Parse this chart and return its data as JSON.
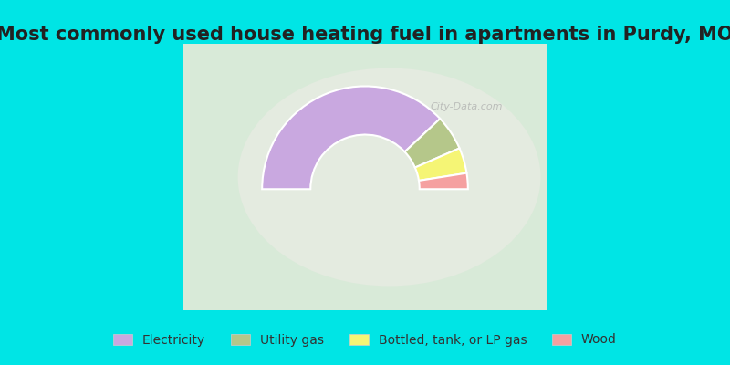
{
  "title": "Most commonly used house heating fuel in apartments in Purdy, MO",
  "segments": [
    {
      "label": "Electricity",
      "value": 76,
      "color": "#c9a8e0"
    },
    {
      "label": "Utility gas",
      "value": 11,
      "color": "#b5c78a"
    },
    {
      "label": "Bottled, tank, or LP gas",
      "value": 8,
      "color": "#f5f575"
    },
    {
      "label": "Wood",
      "value": 5,
      "color": "#f5a0a0"
    }
  ],
  "background_color_outer": "#00e5e5",
  "background_color_inner": "#c8e6c0",
  "title_fontsize": 15,
  "legend_fontsize": 10,
  "watermark": "City-Data.com"
}
